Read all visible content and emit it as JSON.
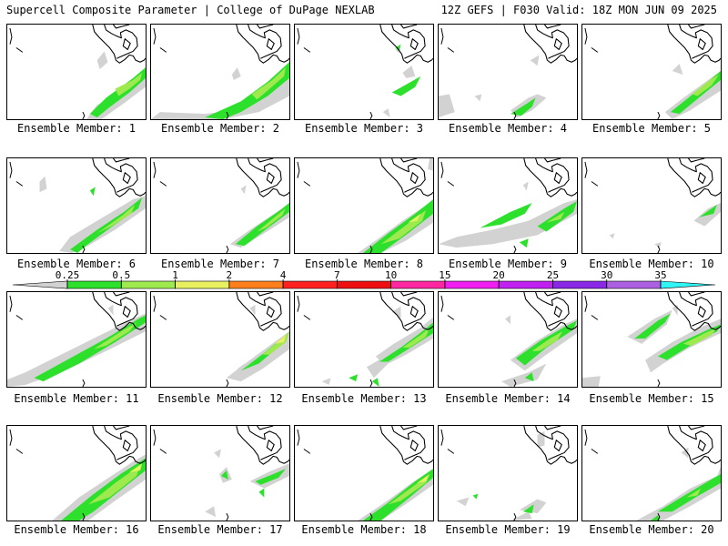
{
  "header": {
    "left": "Supercell Composite Parameter | College of DuPage NEXLAB",
    "right": "12Z GEFS | F030 Valid: 18Z MON JUN 09 2025"
  },
  "colorbar": {
    "ticks": [
      "0.25",
      "0.5",
      "1",
      "2",
      "4",
      "7",
      "10",
      "15",
      "20",
      "25",
      "30",
      "35"
    ],
    "colors": [
      "#d2d2d2",
      "#2ce02c",
      "#9ee94e",
      "#e8f060",
      "#ff7f1e",
      "#ff2020",
      "#ee1010",
      "#ff28a0",
      "#f01ef0",
      "#c020f0",
      "#8a28e6",
      "#aa60e0",
      "#2ff5f5"
    ]
  },
  "panels": [
    {
      "label": "Ensemble Member: 1"
    },
    {
      "label": "Ensemble Member: 2"
    },
    {
      "label": "Ensemble Member: 3"
    },
    {
      "label": "Ensemble Member: 4"
    },
    {
      "label": "Ensemble Member: 5"
    },
    {
      "label": "Ensemble Member: 6"
    },
    {
      "label": "Ensemble Member: 7"
    },
    {
      "label": "Ensemble Member: 8"
    },
    {
      "label": "Ensemble Member: 9"
    },
    {
      "label": "Ensemble Member: 10"
    },
    {
      "label": "Ensemble Member: 11"
    },
    {
      "label": "Ensemble Member: 12"
    },
    {
      "label": "Ensemble Member: 13"
    },
    {
      "label": "Ensemble Member: 14"
    },
    {
      "label": "Ensemble Member: 15"
    },
    {
      "label": "Ensemble Member: 16"
    },
    {
      "label": "Ensemble Member: 17"
    },
    {
      "label": "Ensemble Member: 18"
    },
    {
      "label": "Ensemble Member: 19"
    },
    {
      "label": "Ensemble Member: 20"
    }
  ]
}
